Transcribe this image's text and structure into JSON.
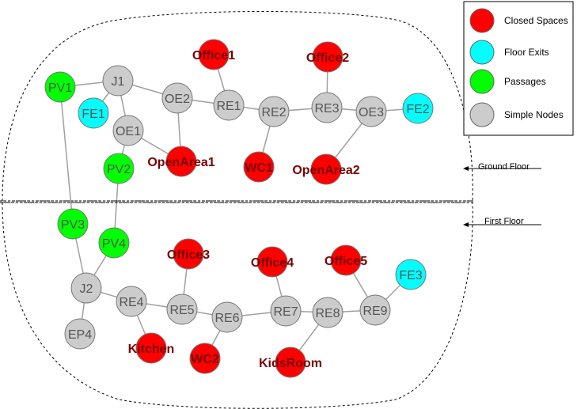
{
  "colors": {
    "closed": "#ff0000",
    "exit": "#00ffff",
    "passage": "#00ff00",
    "simple": "#cccccc",
    "tag_text": "#7a0000",
    "edge": "#a0a0a0"
  },
  "legend": {
    "items": [
      {
        "type": "closed",
        "label": "Closed Spaces"
      },
      {
        "type": "exit",
        "label": "Floor Exits"
      },
      {
        "type": "passage",
        "label": "Passages"
      },
      {
        "type": "simple",
        "label": "Simple Nodes"
      }
    ]
  },
  "floors": {
    "ground": "Ground Floor",
    "first": "First Floor"
  },
  "nodes": [
    {
      "id": "PV1",
      "type": "passage",
      "label": "PV1"
    },
    {
      "id": "J1",
      "type": "simple",
      "label": "J1"
    },
    {
      "id": "FE1",
      "type": "exit",
      "label": "FE1"
    },
    {
      "id": "OE1",
      "type": "simple",
      "label": "OE1"
    },
    {
      "id": "OE2",
      "type": "simple",
      "label": "OE2"
    },
    {
      "id": "PV2",
      "type": "passage",
      "label": "PV2"
    },
    {
      "id": "OpenArea1",
      "type": "closed",
      "label": "OpenArea1"
    },
    {
      "id": "Office1",
      "type": "closed",
      "label": "Office1"
    },
    {
      "id": "RE1",
      "type": "simple",
      "label": "RE1"
    },
    {
      "id": "RE2",
      "type": "simple",
      "label": "RE2"
    },
    {
      "id": "WC1",
      "type": "closed",
      "label": "WC1"
    },
    {
      "id": "RE3",
      "type": "simple",
      "label": "RE3"
    },
    {
      "id": "Office2",
      "type": "closed",
      "label": "Office2"
    },
    {
      "id": "OE3",
      "type": "simple",
      "label": "OE3"
    },
    {
      "id": "FE2",
      "type": "exit",
      "label": "FE2"
    },
    {
      "id": "OpenArea2",
      "type": "closed",
      "label": "OpenArea2"
    },
    {
      "id": "PV3",
      "type": "passage",
      "label": "PV3"
    },
    {
      "id": "PV4",
      "type": "passage",
      "label": "PV4"
    },
    {
      "id": "J2",
      "type": "simple",
      "label": "J2"
    },
    {
      "id": "EP4",
      "type": "simple",
      "label": "EP4"
    },
    {
      "id": "RE4",
      "type": "simple",
      "label": "RE4"
    },
    {
      "id": "Kitchen",
      "type": "closed",
      "label": "Kitchen"
    },
    {
      "id": "RE5",
      "type": "simple",
      "label": "RE5"
    },
    {
      "id": "Office3",
      "type": "closed",
      "label": "Office3"
    },
    {
      "id": "RE6",
      "type": "simple",
      "label": "RE6"
    },
    {
      "id": "WC2",
      "type": "closed",
      "label": "WC2"
    },
    {
      "id": "RE7",
      "type": "simple",
      "label": "RE7"
    },
    {
      "id": "Office4",
      "type": "closed",
      "label": "Office4"
    },
    {
      "id": "RE8",
      "type": "simple",
      "label": "RE8"
    },
    {
      "id": "KidsRoom",
      "type": "closed",
      "label": "KidsRoom"
    },
    {
      "id": "RE9",
      "type": "simple",
      "label": "RE9"
    },
    {
      "id": "Office5",
      "type": "closed",
      "label": "Office5"
    },
    {
      "id": "FE3",
      "type": "exit",
      "label": "FE3"
    }
  ],
  "edges": [
    [
      "PV1",
      "J1"
    ],
    [
      "J1",
      "FE1"
    ],
    [
      "J1",
      "OE1"
    ],
    [
      "J1",
      "OE2"
    ],
    [
      "OE2",
      "RE1"
    ],
    [
      "OE2",
      "OpenArea1"
    ],
    [
      "OE1",
      "OpenArea1"
    ],
    [
      "OE1",
      "PV2"
    ],
    [
      "RE1",
      "Office1"
    ],
    [
      "RE1",
      "RE2"
    ],
    [
      "RE2",
      "WC1"
    ],
    [
      "RE2",
      "RE3"
    ],
    [
      "RE3",
      "Office2"
    ],
    [
      "RE3",
      "OE3"
    ],
    [
      "OE3",
      "FE2"
    ],
    [
      "OE3",
      "OpenArea2"
    ],
    [
      "PV1",
      "PV3"
    ],
    [
      "PV2",
      "PV4"
    ],
    [
      "PV3",
      "J2"
    ],
    [
      "PV4",
      "J2"
    ],
    [
      "J2",
      "EP4"
    ],
    [
      "J2",
      "RE4"
    ],
    [
      "RE4",
      "Kitchen"
    ],
    [
      "RE4",
      "RE5"
    ],
    [
      "RE5",
      "Office3"
    ],
    [
      "RE5",
      "RE6"
    ],
    [
      "RE6",
      "WC2"
    ],
    [
      "RE6",
      "RE7"
    ],
    [
      "RE7",
      "Office4"
    ],
    [
      "RE7",
      "RE8"
    ],
    [
      "RE8",
      "KidsRoom"
    ],
    [
      "RE8",
      "RE9"
    ],
    [
      "RE9",
      "Office5"
    ],
    [
      "RE9",
      "FE3"
    ]
  ]
}
